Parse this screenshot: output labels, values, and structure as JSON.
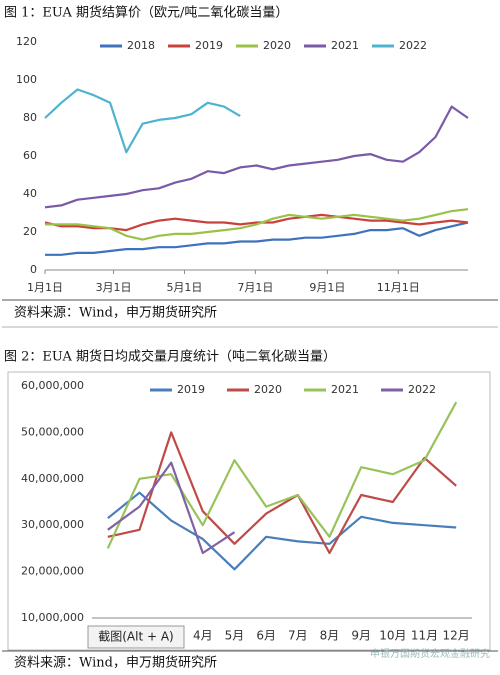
{
  "chart_data": [
    {
      "type": "line",
      "title": "图 1：EUA 期货结算价（欧元/吨二氧化碳当量）",
      "x": [
        1,
        15,
        29,
        43,
        57,
        71,
        85,
        99,
        113,
        127,
        141,
        155,
        169,
        183,
        197,
        211,
        225,
        239,
        253,
        267,
        281,
        295,
        309,
        323,
        337,
        351,
        365
      ],
      "xlim": [
        1,
        365
      ],
      "xticks": [
        {
          "value": 1,
          "label": "1月1日"
        },
        {
          "value": 60,
          "label": "3月1日"
        },
        {
          "value": 121,
          "label": "5月1日"
        },
        {
          "value": 182,
          "label": "7月1日"
        },
        {
          "value": 244,
          "label": "9月1日"
        },
        {
          "value": 305,
          "label": "11月1日"
        }
      ],
      "ylim": [
        0,
        120
      ],
      "yticks": [
        0,
        20,
        40,
        60,
        80,
        100,
        120
      ],
      "grid": false,
      "legend": "top",
      "series": [
        {
          "name": "2018",
          "color": "#3f72bd",
          "values": [
            8,
            8,
            9,
            9,
            10,
            11,
            11,
            12,
            12,
            13,
            14,
            14,
            15,
            15,
            16,
            16,
            17,
            17,
            18,
            19,
            21,
            21,
            22,
            18,
            21,
            23,
            25
          ]
        },
        {
          "name": "2019",
          "color": "#c8413b",
          "values": [
            25,
            23,
            23,
            22,
            22,
            21,
            24,
            26,
            27,
            26,
            25,
            25,
            24,
            25,
            25,
            27,
            28,
            29,
            28,
            27,
            26,
            26,
            25,
            24,
            25,
            26,
            25
          ]
        },
        {
          "name": "2020",
          "color": "#9bc248",
          "values": [
            24,
            24,
            24,
            23,
            22,
            18,
            16,
            18,
            19,
            19,
            20,
            21,
            22,
            24,
            27,
            29,
            28,
            27,
            28,
            29,
            28,
            27,
            26,
            27,
            29,
            31,
            32
          ]
        },
        {
          "name": "2021",
          "color": "#7a5aa8",
          "values": [
            33,
            34,
            37,
            38,
            39,
            40,
            42,
            43,
            46,
            48,
            52,
            51,
            54,
            55,
            53,
            55,
            56,
            57,
            58,
            60,
            61,
            58,
            57,
            62,
            70,
            86,
            80
          ]
        },
        {
          "name": "2022",
          "color": "#4fb3d0",
          "values": [
            80,
            88,
            95,
            92,
            88,
            62,
            77,
            79,
            80,
            82,
            88,
            86,
            81,
            null,
            null,
            null,
            null,
            null,
            null,
            null,
            null,
            null,
            null,
            null,
            null,
            null,
            null
          ]
        }
      ]
    },
    {
      "type": "line",
      "title": "图 2：EUA 期货日均成交量月度统计（吨二氧化碳当量）",
      "categories": [
        null,
        null,
        null,
        "4月",
        "5月",
        "6月",
        "7月",
        "8月",
        "9月",
        "10月",
        "11月",
        "12月"
      ],
      "ylim": [
        10000000,
        60000000
      ],
      "yticks": [
        {
          "value": 10000000,
          "label": "10,000,000"
        },
        {
          "value": 20000000,
          "label": "20,000,000"
        },
        {
          "value": 30000000,
          "label": "30,000,000"
        },
        {
          "value": 40000000,
          "label": "40,000,000"
        },
        {
          "value": 50000000,
          "label": "50,000,000"
        },
        {
          "value": 60000000,
          "label": "60,000,000"
        }
      ],
      "grid": false,
      "legend": "top",
      "series": [
        {
          "name": "2019",
          "color": "#4a7ebb",
          "values": [
            31500000,
            37000000,
            31000000,
            27000000,
            20500000,
            27500000,
            26500000,
            26000000,
            31800000,
            30500000,
            30000000,
            29500000
          ]
        },
        {
          "name": "2020",
          "color": "#be4b48",
          "values": [
            27500000,
            29000000,
            50000000,
            33000000,
            26000000,
            32500000,
            36500000,
            24000000,
            36500000,
            35000000,
            44500000,
            38500000
          ]
        },
        {
          "name": "2021",
          "color": "#98c35a",
          "values": [
            25000000,
            40000000,
            41000000,
            30000000,
            44000000,
            34000000,
            36500000,
            27500000,
            42500000,
            41000000,
            44000000,
            56500000
          ]
        },
        {
          "name": "2022",
          "color": "#7f62a6",
          "values": [
            29000000,
            34000000,
            43500000,
            24000000,
            28500000,
            null,
            null,
            null,
            null,
            null,
            null,
            null
          ]
        }
      ]
    }
  ],
  "sources": [
    "资料来源：Wind，申万期货研究所",
    "资料来源：Wind，申万期货研究所"
  ],
  "overlay": "截图(Alt + A)",
  "watermark": "申银万国期货宏观金融研究"
}
